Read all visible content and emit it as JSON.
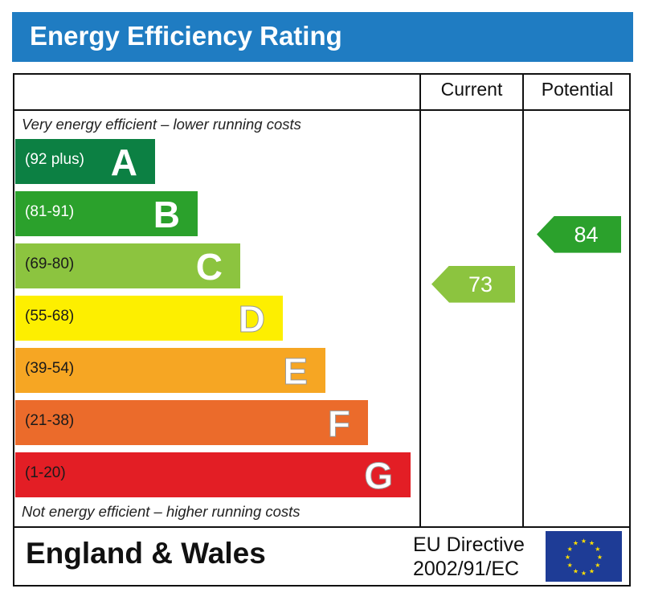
{
  "chart_data": {
    "type": "bar",
    "title": "Energy Efficiency Rating",
    "columns": [
      "Current",
      "Potential"
    ],
    "top_note": "Very energy efficient – lower running costs",
    "bottom_note": "Not energy efficient – higher running costs",
    "bands": [
      {
        "letter": "A",
        "range": "(92 plus)",
        "color": "#0c8043",
        "text_color": "#ffffff"
      },
      {
        "letter": "B",
        "range": "(81-91)",
        "color": "#2ba12c",
        "text_color": "#ffffff"
      },
      {
        "letter": "C",
        "range": "(69-80)",
        "color": "#8cc43f",
        "text_color": "#1a1a1a"
      },
      {
        "letter": "D",
        "range": "(55-68)",
        "color": "#fdef00",
        "text_color": "#1a1a1a"
      },
      {
        "letter": "E",
        "range": "(39-54)",
        "color": "#f6a623",
        "text_color": "#1a1a1a"
      },
      {
        "letter": "F",
        "range": "(21-38)",
        "color": "#eb6b2b",
        "text_color": "#1a1a1a"
      },
      {
        "letter": "G",
        "range": "(1-20)",
        "color": "#e31e25",
        "text_color": "#1a1a1a"
      }
    ],
    "current": {
      "value": 73,
      "band": "C",
      "color": "#8cc43f"
    },
    "potential": {
      "value": 84,
      "band": "B",
      "color": "#2ba12c"
    }
  },
  "footer": {
    "region": "England & Wales",
    "directive_line1": "EU Directive",
    "directive_line2": "2002/91/EC",
    "flag_icon": "eu-flag-icon"
  }
}
